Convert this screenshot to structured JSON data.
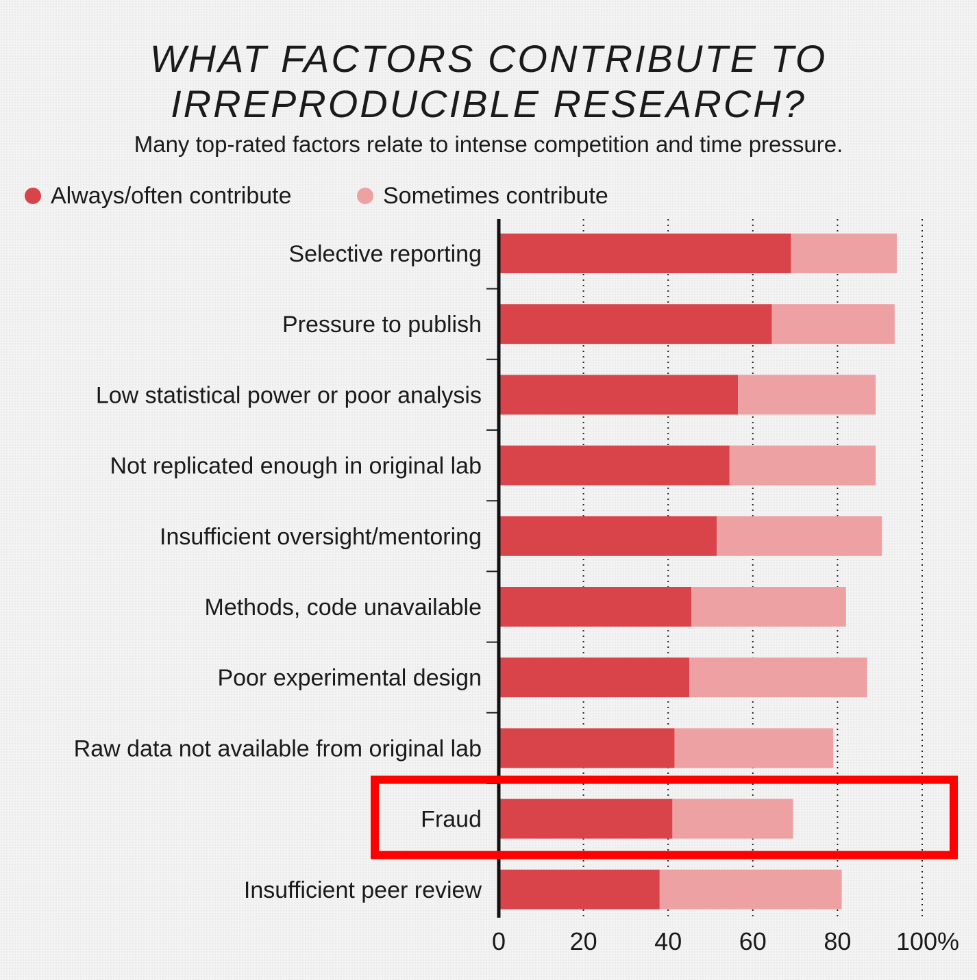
{
  "chart_data": {
    "type": "bar",
    "stacked": true,
    "orientation": "horizontal",
    "title_line1": "WHAT FACTORS CONTRIBUTE TO",
    "title_line2": "IRREPRODUCIBLE RESEARCH?",
    "subtitle": "Many top-rated factors relate to intense competition and time pressure.",
    "categories": [
      "Selective reporting",
      "Pressure to publish",
      "Low statistical power or poor analysis",
      "Not replicated enough in original lab",
      "Insufficient oversight/mentoring",
      "Methods, code unavailable",
      "Poor experimental design",
      "Raw data not available from original lab",
      "Fraud",
      "Insufficient peer review"
    ],
    "series": [
      {
        "name": "Always/often contribute",
        "color": "#d9444b",
        "values": [
          69,
          64.5,
          56.5,
          54.5,
          51.5,
          45.5,
          45,
          41.5,
          41,
          38
        ]
      },
      {
        "name": "Sometimes contribute",
        "color": "#eea1a2",
        "values": [
          25,
          29,
          32.5,
          34.5,
          39,
          36.5,
          42,
          37.5,
          28.5,
          43
        ]
      }
    ],
    "xlim": [
      0,
      100
    ],
    "xticks": [
      "0",
      "20",
      "40",
      "60",
      "80",
      "100%"
    ],
    "xtick_values": [
      0,
      20,
      40,
      60,
      80,
      100
    ],
    "grid": "vertical dotted",
    "legend_position": "top-left",
    "highlight": {
      "category": "Fraud",
      "color": "#ff0000"
    }
  }
}
